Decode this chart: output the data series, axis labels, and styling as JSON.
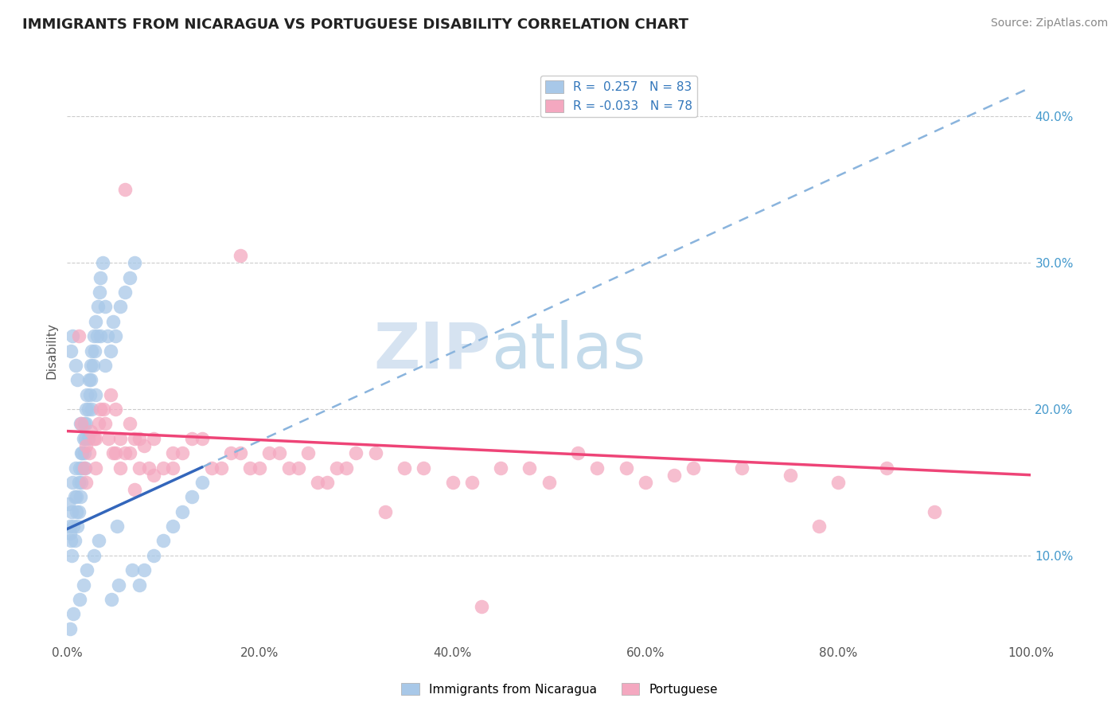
{
  "title": "IMMIGRANTS FROM NICARAGUA VS PORTUGUESE DISABILITY CORRELATION CHART",
  "source_text": "Source: ZipAtlas.com",
  "ylabel": "Disability",
  "legend_label1": "Immigrants from Nicaragua",
  "legend_label2": "Portuguese",
  "r1": 0.257,
  "n1": 83,
  "r2": -0.033,
  "n2": 78,
  "color1": "#a8c8e8",
  "color2": "#f4a8c0",
  "trend1_color": "#3366bb",
  "trend2_color": "#ee4477",
  "trend1_dash_color": "#8ab4dd",
  "watermark_zip": "ZIP",
  "watermark_atlas": "atlas",
  "background_color": "#ffffff",
  "xlim": [
    0.0,
    100.0
  ],
  "ylim": [
    0.04,
    0.44
  ],
  "yticks_left": [
    0.1,
    0.2,
    0.3,
    0.4
  ],
  "yticks_right": [
    0.1,
    0.2,
    0.3,
    0.4
  ],
  "xticks": [
    0.0,
    20.0,
    40.0,
    60.0,
    80.0,
    100.0
  ],
  "grid_color": "#cccccc",
  "scatter1_x": [
    0.2,
    0.3,
    0.35,
    0.4,
    0.5,
    0.5,
    0.6,
    0.7,
    0.8,
    0.8,
    0.9,
    1.0,
    1.0,
    1.1,
    1.2,
    1.2,
    1.3,
    1.4,
    1.5,
    1.5,
    1.6,
    1.7,
    1.8,
    1.8,
    1.9,
    2.0,
    2.0,
    2.1,
    2.2,
    2.3,
    2.4,
    2.5,
    2.5,
    2.6,
    2.7,
    2.8,
    2.9,
    3.0,
    3.1,
    3.2,
    3.4,
    3.5,
    3.7,
    4.0,
    4.2,
    4.5,
    4.8,
    5.0,
    5.5,
    6.0,
    6.5,
    7.0,
    7.5,
    8.0,
    9.0,
    10.0,
    11.0,
    12.0,
    13.0,
    14.0,
    0.4,
    0.6,
    0.9,
    1.1,
    1.4,
    1.6,
    1.9,
    2.2,
    2.6,
    3.0,
    3.5,
    4.0,
    4.6,
    5.4,
    6.8,
    0.3,
    0.7,
    1.3,
    1.7,
    2.1,
    2.8,
    3.3,
    5.2
  ],
  "scatter1_y": [
    0.135,
    0.12,
    0.115,
    0.11,
    0.13,
    0.1,
    0.15,
    0.12,
    0.14,
    0.11,
    0.16,
    0.13,
    0.14,
    0.12,
    0.15,
    0.13,
    0.16,
    0.14,
    0.15,
    0.17,
    0.16,
    0.18,
    0.17,
    0.19,
    0.18,
    0.2,
    0.19,
    0.21,
    0.2,
    0.22,
    0.21,
    0.23,
    0.22,
    0.24,
    0.23,
    0.25,
    0.24,
    0.26,
    0.25,
    0.27,
    0.28,
    0.29,
    0.3,
    0.23,
    0.25,
    0.24,
    0.26,
    0.25,
    0.27,
    0.28,
    0.29,
    0.3,
    0.08,
    0.09,
    0.1,
    0.11,
    0.12,
    0.13,
    0.14,
    0.15,
    0.24,
    0.25,
    0.23,
    0.22,
    0.19,
    0.17,
    0.16,
    0.18,
    0.2,
    0.21,
    0.25,
    0.27,
    0.07,
    0.08,
    0.09,
    0.05,
    0.06,
    0.07,
    0.08,
    0.09,
    0.1,
    0.11,
    0.12
  ],
  "scatter2_x": [
    1.5,
    2.0,
    2.5,
    3.0,
    3.5,
    4.0,
    4.5,
    5.0,
    5.5,
    6.0,
    6.5,
    7.0,
    7.5,
    8.0,
    9.0,
    10.0,
    12.0,
    14.0,
    16.0,
    18.0,
    20.0,
    22.0,
    24.0,
    26.0,
    28.0,
    30.0,
    35.0,
    40.0,
    45.0,
    50.0,
    55.0,
    60.0,
    65.0,
    75.0,
    1.2,
    1.8,
    2.3,
    2.8,
    3.3,
    3.8,
    4.3,
    4.8,
    5.5,
    6.5,
    7.5,
    8.5,
    11.0,
    13.0,
    15.0,
    17.0,
    19.0,
    21.0,
    23.0,
    25.0,
    27.0,
    29.0,
    32.0,
    37.0,
    42.0,
    48.0,
    53.0,
    58.0,
    63.0,
    70.0,
    80.0,
    85.0,
    90.0,
    2.0,
    3.0,
    5.0,
    7.0,
    9.0,
    11.0,
    33.0,
    43.0,
    78.0,
    6.0,
    18.0
  ],
  "scatter2_y": [
    0.19,
    0.175,
    0.185,
    0.18,
    0.2,
    0.19,
    0.21,
    0.2,
    0.18,
    0.17,
    0.19,
    0.18,
    0.16,
    0.175,
    0.18,
    0.16,
    0.17,
    0.18,
    0.16,
    0.17,
    0.16,
    0.17,
    0.16,
    0.15,
    0.16,
    0.17,
    0.16,
    0.15,
    0.16,
    0.15,
    0.16,
    0.15,
    0.16,
    0.155,
    0.25,
    0.16,
    0.17,
    0.18,
    0.19,
    0.2,
    0.18,
    0.17,
    0.16,
    0.17,
    0.18,
    0.16,
    0.17,
    0.18,
    0.16,
    0.17,
    0.16,
    0.17,
    0.16,
    0.17,
    0.15,
    0.16,
    0.17,
    0.16,
    0.15,
    0.16,
    0.17,
    0.16,
    0.155,
    0.16,
    0.15,
    0.16,
    0.13,
    0.15,
    0.16,
    0.17,
    0.145,
    0.155,
    0.16,
    0.13,
    0.065,
    0.12,
    0.35,
    0.305
  ],
  "trend1_x": [
    0.0,
    100.0
  ],
  "trend1_y": [
    0.118,
    0.42
  ],
  "trend2_x": [
    0.0,
    100.0
  ],
  "trend2_y": [
    0.185,
    0.155
  ],
  "blue_line_end_x": 40.0,
  "blue_line_end_y": 0.243
}
